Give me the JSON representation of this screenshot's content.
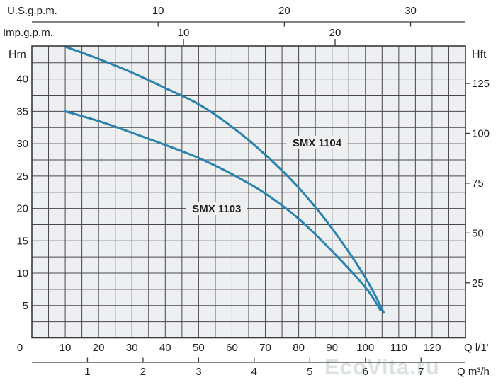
{
  "watermark": {
    "text": "EcoVita.ru",
    "color": "#c9d2d2"
  },
  "chart_data": {
    "type": "line",
    "title": "",
    "plot_bg": "#edeff1",
    "grid_color": "#48484b",
    "border_color": "#39393b",
    "text_color": "#1e1e1e",
    "grid": true,
    "legend_position": "none",
    "x_axis": {
      "label": "Q l/1'",
      "min": 0,
      "max": 130,
      "grid_step": 5,
      "tick_labels": [
        0,
        10,
        20,
        30,
        40,
        50,
        60,
        70,
        80,
        90,
        100,
        110,
        120
      ]
    },
    "y_axis": {
      "label": "Hm",
      "min": 0,
      "max": 45.1,
      "grid_step": 2.5,
      "tick_labels": [
        5,
        10,
        15,
        20,
        25,
        30,
        35,
        40
      ]
    },
    "y_axis_right": {
      "label": "Hft",
      "tick_labels": [
        25,
        50,
        75,
        100,
        125
      ]
    },
    "x_axis_m3h": {
      "label": "Q m³/h",
      "tick_labels": [
        1,
        2,
        3,
        4,
        5,
        6,
        7
      ],
      "liters_per_unit": 16.667
    },
    "x_axis_us_gpm": {
      "label": "U.S.g.p.m.",
      "tick_labels": [
        10,
        20,
        30
      ],
      "liters_per_unit": 3.785
    },
    "x_axis_imp_gpm": {
      "label": "Imp.g.p.m.",
      "tick_labels": [
        10,
        20
      ],
      "liters_per_unit": 4.546
    },
    "series": [
      {
        "name": "SMX 1104",
        "color": "#2a82af",
        "label_at": [
          85.5,
          30.2
        ],
        "points": [
          [
            10,
            45.0
          ],
          [
            20,
            43.1
          ],
          [
            30,
            41.0
          ],
          [
            40,
            38.6
          ],
          [
            50,
            36.1
          ],
          [
            60,
            32.6
          ],
          [
            70,
            28.3
          ],
          [
            80,
            23.2
          ],
          [
            90,
            16.9
          ],
          [
            100,
            9.3
          ],
          [
            105.5,
            3.9
          ]
        ]
      },
      {
        "name": "SMX 1103",
        "color": "#2a82af",
        "label_at": [
          55.4,
          20.0
        ],
        "points": [
          [
            10,
            35.0
          ],
          [
            20,
            33.5
          ],
          [
            30,
            31.7
          ],
          [
            40,
            29.8
          ],
          [
            50,
            27.8
          ],
          [
            60,
            25.3
          ],
          [
            70,
            22.3
          ],
          [
            80,
            18.4
          ],
          [
            90,
            13.4
          ],
          [
            100,
            7.8
          ],
          [
            104.5,
            4.3
          ]
        ]
      }
    ]
  }
}
